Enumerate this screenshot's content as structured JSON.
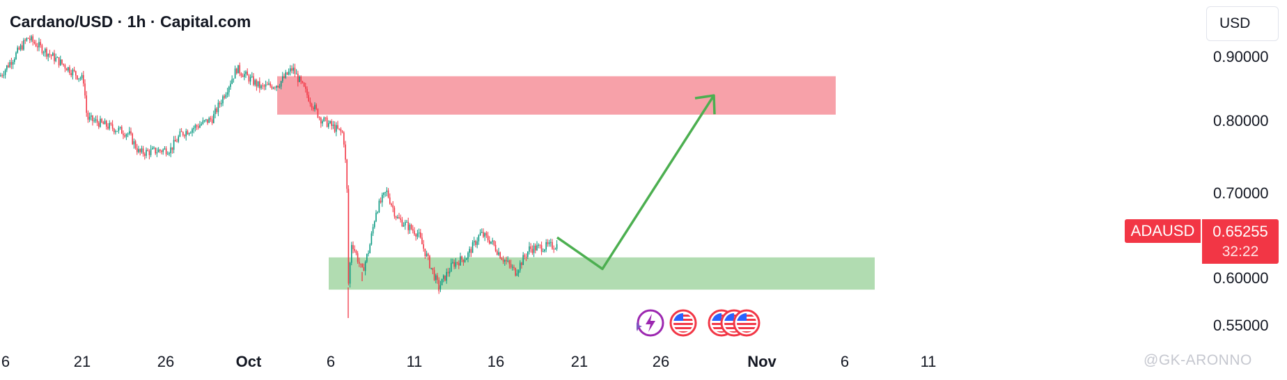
{
  "header": {
    "title": "Cardano/USD · 1h · Capital.com",
    "currency": "USD"
  },
  "price_axis": {
    "labels": [
      "0.90000",
      "0.80000",
      "0.70000",
      "0.60000",
      "0.55000"
    ]
  },
  "time_axis": {
    "labels": [
      "6",
      "21",
      "26",
      "Oct",
      "6",
      "11",
      "16",
      "21",
      "26",
      "Nov",
      "6",
      "11"
    ]
  },
  "current_price": {
    "symbol": "ADAUSD",
    "price": "0.65255",
    "countdown": "32:22"
  },
  "watermark": "@GK-ARONNO",
  "colors": {
    "bull": "#089981",
    "bear": "#f23645",
    "supply_zone": "#f7a1a9",
    "demand_zone": "#b1dcb1",
    "projection": "#4caf50"
  },
  "chart_data": {
    "type": "candlestick",
    "symbol": "ADAUSD",
    "interval": "1h",
    "y_scale": "linear",
    "ylim": [
      0.52,
      0.935
    ],
    "x_ticks": [
      "6",
      "21",
      "26",
      "Oct",
      "6",
      "11",
      "16",
      "21",
      "26",
      "Nov",
      "6",
      "11"
    ],
    "price_path": [
      [
        0,
        0.875
      ],
      [
        40,
        0.925
      ],
      [
        120,
        0.87
      ],
      [
        125,
        0.82
      ],
      [
        185,
        0.8
      ],
      [
        200,
        0.775
      ],
      [
        245,
        0.78
      ],
      [
        260,
        0.8
      ],
      [
        305,
        0.82
      ],
      [
        340,
        0.885
      ],
      [
        375,
        0.86
      ],
      [
        400,
        0.865
      ],
      [
        420,
        0.885
      ],
      [
        460,
        0.82
      ],
      [
        493,
        0.8
      ],
      [
        498,
        0.74
      ],
      [
        500,
        0.6
      ],
      [
        505,
        0.66
      ],
      [
        520,
        0.62
      ],
      [
        530,
        0.65
      ],
      [
        540,
        0.7
      ],
      [
        555,
        0.725
      ],
      [
        570,
        0.69
      ],
      [
        600,
        0.67
      ],
      [
        630,
        0.6
      ],
      [
        650,
        0.63
      ],
      [
        670,
        0.64
      ],
      [
        690,
        0.67
      ],
      [
        705,
        0.66
      ],
      [
        720,
        0.64
      ],
      [
        740,
        0.62
      ],
      [
        760,
        0.65
      ],
      [
        800,
        0.655
      ]
    ],
    "spike_lows": [
      [
        500,
        0.56
      ],
      [
        630,
        0.595
      ],
      [
        520,
        0.608
      ]
    ],
    "supply_zone": {
      "price_low": 0.825,
      "price_high": 0.875
    },
    "demand_zone": {
      "price_low": 0.597,
      "price_high": 0.639
    },
    "projection": [
      [
        800,
        0.665
      ],
      [
        865,
        0.624
      ],
      [
        1025,
        0.85
      ]
    ]
  }
}
